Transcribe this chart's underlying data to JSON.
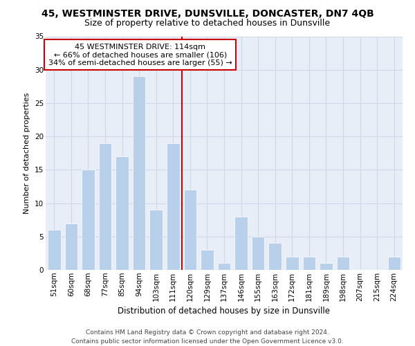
{
  "title1": "45, WESTMINSTER DRIVE, DUNSVILLE, DONCASTER, DN7 4QB",
  "title2": "Size of property relative to detached houses in Dunsville",
  "xlabel": "Distribution of detached houses by size in Dunsville",
  "ylabel": "Number of detached properties",
  "bar_labels": [
    "51sqm",
    "60sqm",
    "68sqm",
    "77sqm",
    "85sqm",
    "94sqm",
    "103sqm",
    "111sqm",
    "120sqm",
    "129sqm",
    "137sqm",
    "146sqm",
    "155sqm",
    "163sqm",
    "172sqm",
    "181sqm",
    "189sqm",
    "198sqm",
    "207sqm",
    "215sqm",
    "224sqm"
  ],
  "bar_values": [
    6,
    7,
    15,
    19,
    17,
    29,
    9,
    19,
    12,
    3,
    1,
    8,
    5,
    4,
    2,
    2,
    1,
    2,
    0,
    0,
    2
  ],
  "bar_color": "#b8d0ea",
  "bar_edgecolor": "white",
  "bar_width": 0.75,
  "vline_x": 7.5,
  "vline_color": "#cc0000",
  "annotation_line1": "  45 WESTMINSTER DRIVE: 114sqm  ",
  "annotation_line2": "← 66% of detached houses are smaller (106)",
  "annotation_line3": "34% of semi-detached houses are larger (55) →",
  "annotation_box_color": "#cc0000",
  "ylim": [
    0,
    35
  ],
  "yticks": [
    0,
    5,
    10,
    15,
    20,
    25,
    30,
    35
  ],
  "grid_color": "#d0d8e8",
  "background_color": "#e8eef8",
  "footnote1": "Contains HM Land Registry data © Crown copyright and database right 2024.",
  "footnote2": "Contains public sector information licensed under the Open Government Licence v3.0.",
  "title1_fontsize": 10,
  "title2_fontsize": 9,
  "xlabel_fontsize": 8.5,
  "ylabel_fontsize": 8,
  "tick_fontsize": 7.5,
  "annotation_fontsize": 8,
  "footnote_fontsize": 6.5
}
